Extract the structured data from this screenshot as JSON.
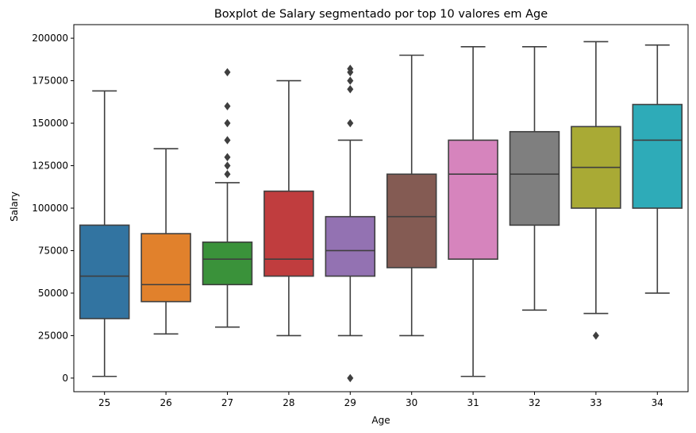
{
  "chart_data": {
    "type": "boxplot",
    "title": "Boxplot de Salary segmentado por top 10 valores em Age",
    "xlabel": "Age",
    "ylabel": "Salary",
    "ylim": [
      -8000,
      208000
    ],
    "yticks": [
      0,
      25000,
      50000,
      75000,
      100000,
      125000,
      150000,
      175000,
      200000
    ],
    "grid": false,
    "categories": [
      "25",
      "26",
      "27",
      "28",
      "29",
      "30",
      "31",
      "32",
      "33",
      "34"
    ],
    "boxes": [
      {
        "category": "25",
        "color": "#3274a1",
        "whisker_low": 1000,
        "q1": 35000,
        "median": 60000,
        "q3": 90000,
        "whisker_high": 169000,
        "outliers": []
      },
      {
        "category": "26",
        "color": "#e1812c",
        "whisker_low": 26000,
        "q1": 45000,
        "median": 55000,
        "q3": 85000,
        "whisker_high": 135000,
        "outliers": []
      },
      {
        "category": "27",
        "color": "#3a923a",
        "whisker_low": 30000,
        "q1": 55000,
        "median": 70000,
        "q3": 80000,
        "whisker_high": 115000,
        "outliers": [
          120000,
          125000,
          130000,
          140000,
          150000,
          160000,
          180000
        ]
      },
      {
        "category": "28",
        "color": "#c03d3e",
        "whisker_low": 25000,
        "q1": 60000,
        "median": 70000,
        "q3": 110000,
        "whisker_high": 175000,
        "outliers": []
      },
      {
        "category": "29",
        "color": "#9372b2",
        "whisker_low": 25000,
        "q1": 60000,
        "median": 75000,
        "q3": 95000,
        "whisker_high": 140000,
        "outliers": [
          0,
          150000,
          170000,
          175000,
          180000,
          182000
        ]
      },
      {
        "category": "30",
        "color": "#845b53",
        "whisker_low": 25000,
        "q1": 65000,
        "median": 95000,
        "q3": 120000,
        "whisker_high": 190000,
        "outliers": []
      },
      {
        "category": "31",
        "color": "#d684bd",
        "whisker_low": 1000,
        "q1": 70000,
        "median": 120000,
        "q3": 140000,
        "whisker_high": 195000,
        "outliers": []
      },
      {
        "category": "32",
        "color": "#7f7f7f",
        "whisker_low": 40000,
        "q1": 90000,
        "median": 120000,
        "q3": 145000,
        "whisker_high": 195000,
        "outliers": []
      },
      {
        "category": "33",
        "color": "#a9aa35",
        "whisker_low": 38000,
        "q1": 100000,
        "median": 124000,
        "q3": 148000,
        "whisker_high": 198000,
        "outliers": [
          25000
        ]
      },
      {
        "category": "34",
        "color": "#2eabb8",
        "whisker_low": 50000,
        "q1": 100000,
        "median": 140000,
        "q3": 161000,
        "whisker_high": 196000,
        "outliers": []
      }
    ]
  }
}
